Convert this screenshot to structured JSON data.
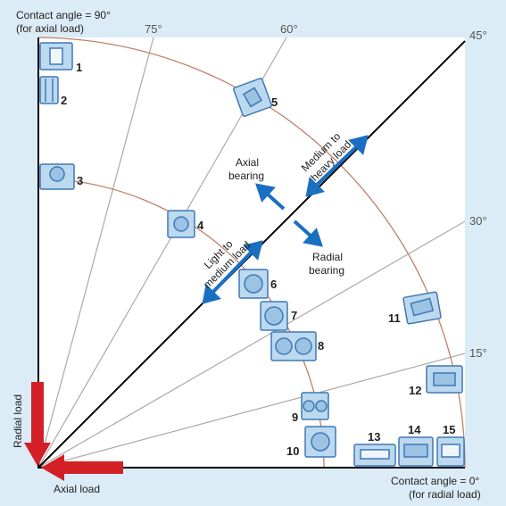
{
  "corner_labels": {
    "top_left_line1": "Contact angle = 90°",
    "top_left_line2": "(for axial load)",
    "bottom_right_line1": "Contact angle = 0°",
    "bottom_right_line2": "(for radial load)"
  },
  "angle_labels": {
    "a75": "75°",
    "a60": "60°",
    "a45": "45°",
    "a30": "30°",
    "a15": "15°"
  },
  "load_labels": {
    "radial_load": "Radial load",
    "axial_load": "Axial load"
  },
  "diagonal_labels": {
    "light_line1": "Light to",
    "light_line2": "medium load",
    "heavy_line1": "Medium to",
    "heavy_line2": "heavy load"
  },
  "direction_labels": {
    "axial_line1": "Axial",
    "axial_line2": "bearing",
    "radial_line1": "Radial",
    "radial_line2": "bearing"
  },
  "bearings": [
    "1",
    "2",
    "3",
    "4",
    "5",
    "6",
    "7",
    "8",
    "9",
    "10",
    "11",
    "12",
    "13",
    "14",
    "15"
  ],
  "colors": {
    "background": "#dcecf7",
    "plot_area": "#ffffff",
    "arc": "#c0806a",
    "ray": "#aaaaaa",
    "diagonal": "#000000",
    "blue_arrow": "#1a6fc0",
    "red_arrow": "#d32027",
    "bearing_fill": "#bcd9ef",
    "bearing_stroke": "#3e79b4"
  }
}
